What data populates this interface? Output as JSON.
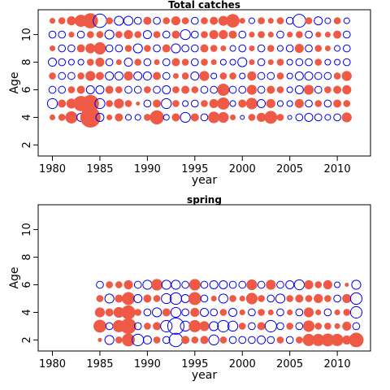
{
  "colors": {
    "positive": "#EE5A45",
    "negative": "#0000EE"
  },
  "chart_data": [
    {
      "type": "bubble",
      "title": "Total catches",
      "xlabel": "year",
      "ylabel": "Age",
      "xlim": [
        1978.5,
        2013.5
      ],
      "ylim": [
        1.2,
        11.8
      ],
      "xticks": [
        1980,
        1985,
        1990,
        1995,
        2000,
        2005,
        2010
      ],
      "yticks": [
        2,
        4,
        6,
        8,
        10
      ],
      "years": [
        1980,
        1981,
        1982,
        1983,
        1984,
        1985,
        1986,
        1987,
        1988,
        1989,
        1990,
        1991,
        1992,
        1993,
        1994,
        1995,
        1996,
        1997,
        1998,
        1999,
        2000,
        2001,
        2002,
        2003,
        2004,
        2005,
        2006,
        2007,
        2008,
        2009,
        2010,
        2011
      ],
      "ages": [
        4,
        5,
        6,
        7,
        8,
        9,
        10,
        11
      ],
      "residuals": {
        "4": [
          0.2,
          0.3,
          0.9,
          -0.4,
          2.5,
          -0.4,
          0.2,
          0.4,
          -0.2,
          -0.2,
          0.3,
          1.2,
          -0.2,
          0.4,
          -0.6,
          0.4,
          -0.3,
          0.8,
          0.7,
          0.2,
          -0.1,
          0.3,
          0.5,
          1.0,
          0.3,
          -0.1,
          -0.3,
          -0.4,
          -0.3,
          -0.2,
          -0.3,
          0.6
        ],
        "5": [
          -0.6,
          0.4,
          0.6,
          1.4,
          1.8,
          -0.6,
          0.3,
          0.6,
          0.3,
          0.1,
          -0.3,
          0.4,
          -0.6,
          0.3,
          -0.2,
          -0.3,
          0.3,
          0.5,
          0.9,
          -0.2,
          0.4,
          0.8,
          -0.4,
          0.5,
          -0.2,
          -0.2,
          0.5,
          -0.3,
          0.3,
          -0.3,
          0.4,
          0.3
        ],
        "6": [
          -0.3,
          -0.3,
          0.3,
          0.4,
          -0.4,
          -0.4,
          0.4,
          0.3,
          -0.3,
          -0.3,
          0.3,
          -0.3,
          -0.4,
          0.3,
          0.4,
          0.3,
          -0.3,
          -0.3,
          0.9,
          -0.3,
          -0.3,
          0.6,
          -0.3,
          0.4,
          0.3,
          -0.2,
          -0.4,
          0.6,
          -0.3,
          0.3,
          0.4,
          0.5
        ],
        "7": [
          0.3,
          -0.3,
          -0.3,
          0.3,
          0.6,
          0.4,
          -0.4,
          -0.4,
          0.5,
          -0.4,
          -0.4,
          0.4,
          -0.3,
          0.2,
          0.3,
          -0.4,
          0.6,
          -0.2,
          0.3,
          0.3,
          -0.2,
          0.5,
          -0.3,
          -0.3,
          0.3,
          -0.2,
          -0.4,
          -0.4,
          -0.3,
          -0.3,
          0.3,
          0.6
        ],
        "8": [
          -0.4,
          -0.3,
          -0.2,
          -0.2,
          0.3,
          0.5,
          -0.3,
          0.2,
          -0.4,
          0.3,
          -0.3,
          0.2,
          -0.3,
          0.4,
          0.3,
          -0.3,
          0.3,
          0.2,
          -0.2,
          -0.2,
          -0.5,
          0.2,
          -0.3,
          0.2,
          0.3,
          -0.2,
          -0.3,
          -0.3,
          0.3,
          -0.2,
          -0.2,
          -0.3
        ],
        "9": [
          0.2,
          -0.3,
          -0.3,
          0.4,
          0.6,
          0.9,
          -0.3,
          -0.3,
          0.3,
          -0.5,
          0.3,
          -0.3,
          0.4,
          -0.5,
          -0.3,
          -0.3,
          0.4,
          0.3,
          0.2,
          -0.2,
          -0.3,
          0.2,
          -0.3,
          0.3,
          -0.2,
          -0.3,
          0.5,
          -0.3,
          0.3,
          0.2,
          -0.2,
          -0.3
        ],
        "10": [
          -0.3,
          -0.3,
          0.2,
          -0.3,
          0.3,
          0.3,
          -0.5,
          0.3,
          0.5,
          0.3,
          -0.4,
          0.3,
          -0.3,
          0.4,
          -0.6,
          -0.3,
          0.3,
          0.5,
          0.5,
          0.4,
          -0.3,
          0.2,
          0.3,
          0.2,
          -0.3,
          0.2,
          0.3,
          -0.3,
          0.2,
          0.2,
          0.4,
          -0.3
        ]
      },
      "age11": [
        0.2,
        0.3,
        0.5,
        0.9,
        1.4,
        -1.1,
        0.3,
        -0.5,
        -0.5,
        -0.3,
        0.4,
        -0.3,
        0.3,
        0.5,
        0.3,
        -0.3,
        0.3,
        0.4,
        0.6,
        1.1,
        0.2,
        -0.2,
        0.3,
        0.2,
        0.3,
        -0.3,
        -1.0,
        0.3,
        -0.4,
        -0.2,
        0.3,
        -0.2
      ]
    },
    {
      "type": "bubble",
      "title": "spring",
      "xlabel": "year",
      "ylabel": "Age",
      "xlim": [
        1978.5,
        2013.5
      ],
      "ylim": [
        1.2,
        11.8
      ],
      "xticks": [
        1980,
        1985,
        1990,
        1995,
        2000,
        2005,
        2010
      ],
      "yticks": [
        2,
        4,
        6,
        8,
        10
      ],
      "years": [
        1985,
        1986,
        1987,
        1988,
        1989,
        1990,
        1991,
        1992,
        1993,
        1994,
        1995,
        1996,
        1997,
        1998,
        1999,
        2000,
        2001,
        2002,
        2003,
        2004,
        2005,
        2006,
        2007,
        2008,
        2009,
        2010,
        2011,
        2012
      ],
      "ages": [
        2,
        3,
        4,
        5,
        6
      ],
      "residuals": {
        "2": [
          0.1,
          -0.5,
          0.3,
          1.0,
          -0.8,
          -0.4,
          0.3,
          -0.3,
          -1.1,
          0.4,
          0.3,
          0.4,
          -0.6,
          0.3,
          -0.3,
          -0.3,
          -0.3,
          -0.4,
          -0.3,
          0.3,
          -0.3,
          0.3,
          0.9,
          0.9,
          1.0,
          0.9,
          0.5,
          1.3
        ],
        "3": [
          1.0,
          -0.3,
          0.9,
          1.5,
          -0.3,
          0.3,
          0.4,
          -0.8,
          -1.6,
          -0.6,
          0.9,
          0.6,
          -0.5,
          -0.8,
          -0.6,
          0.3,
          -0.3,
          0.4,
          -0.8,
          -0.3,
          0.3,
          -0.3,
          0.8,
          0.3,
          0.3,
          0.2,
          0.5,
          -0.3
        ],
        "4": [
          0.6,
          0.4,
          0.7,
          1.2,
          0.3,
          -0.3,
          -0.5,
          0.4,
          -0.6,
          -0.3,
          0.5,
          -0.4,
          -0.3,
          0.3,
          -0.4,
          0.2,
          -0.3,
          0.3,
          0.2,
          -0.3,
          0.2,
          -0.3,
          0.6,
          0.2,
          -0.3,
          0.2,
          0.3,
          -0.8
        ],
        "5": [
          0.3,
          -0.5,
          0.4,
          1.0,
          -0.4,
          0.4,
          0.3,
          -0.6,
          -0.8,
          -0.4,
          1.0,
          -0.3,
          0.2,
          -0.5,
          0.3,
          0.2,
          0.8,
          0.3,
          -0.3,
          -0.5,
          0.3,
          0.4,
          0.3,
          0.5,
          0.3,
          -0.3,
          0.5,
          -0.8
        ],
        "6": [
          -0.3,
          0.3,
          0.3,
          0.5,
          -0.3,
          -0.5,
          0.8,
          -0.5,
          -0.5,
          -0.3,
          0.8,
          -0.3,
          -0.4,
          -0.4,
          -0.3,
          -0.3,
          0.7,
          -0.3,
          0.6,
          -0.3,
          -0.4,
          -0.6,
          0.5,
          0.3,
          0.5,
          -0.2,
          0.1,
          -0.5
        ]
      }
    }
  ]
}
